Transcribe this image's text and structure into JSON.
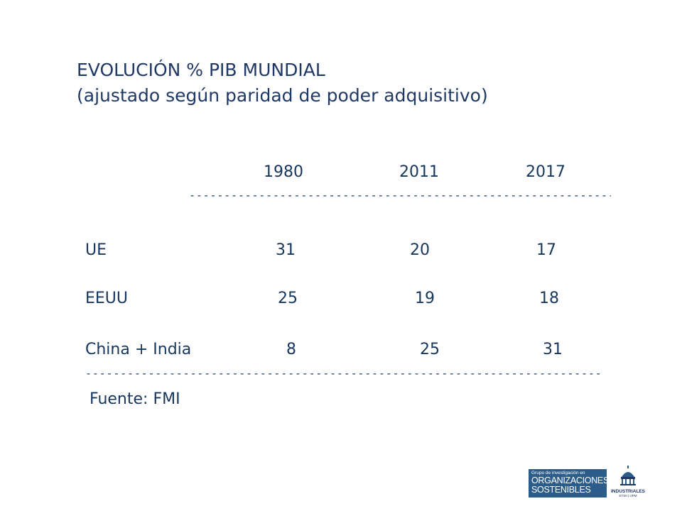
{
  "title": {
    "line1": "EVOLUCIÓN % PIB MUNDIAL",
    "line2": "(ajustado según paridad de poder adquisitivo)"
  },
  "table": {
    "columns": [
      "1980",
      "2011",
      "2017"
    ],
    "rows": [
      {
        "label": "UE",
        "values": [
          "31",
          "20",
          "17"
        ]
      },
      {
        "label": "EEUU",
        "values": [
          "25",
          "19",
          "18"
        ]
      },
      {
        "label": "China + India",
        "values": [
          "8",
          "25",
          "31"
        ]
      }
    ],
    "separator": "------------------------------------------------------------------------------------------------------------------------",
    "source": "Fuente: FMI"
  },
  "logos": {
    "org_small": "Grupo de investigación en",
    "org_line1": "ORGANIZACIONES",
    "org_line2": "SOSTENIBLES",
    "ind_name": "INDUSTRIALES",
    "ind_sub": "ETSII | UPM"
  },
  "colors": {
    "text": "#17365d",
    "logo_bg": "#2c5d8a"
  }
}
